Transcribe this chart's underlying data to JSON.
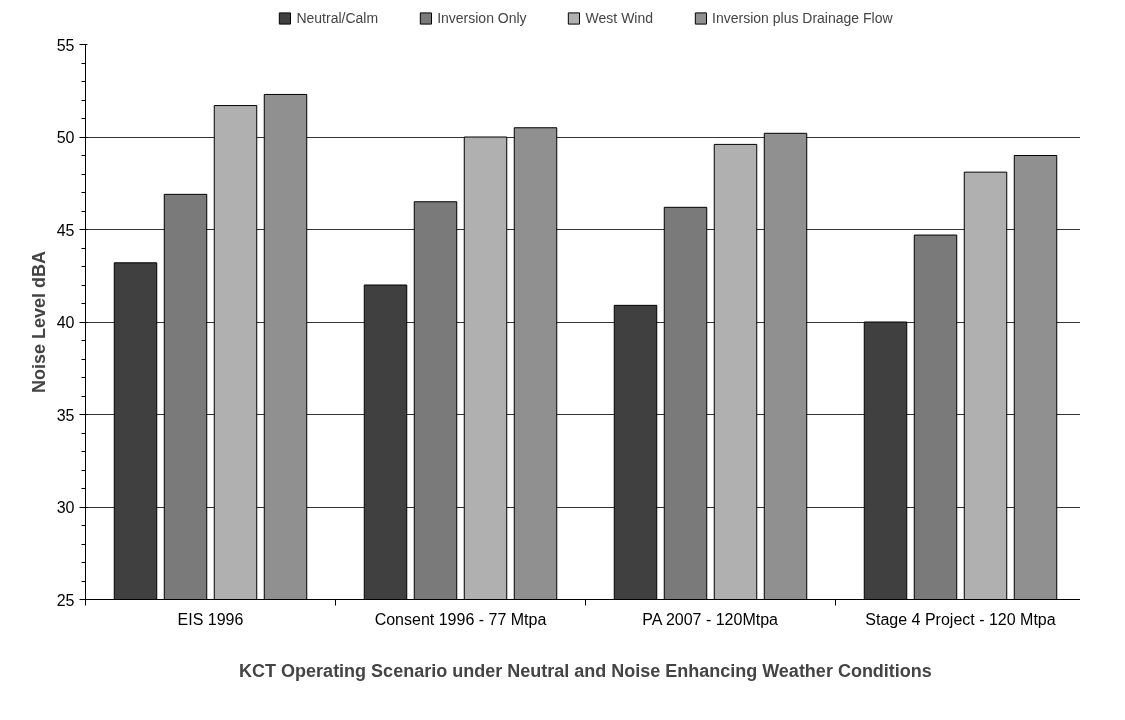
{
  "chart_data": {
    "type": "bar",
    "xlabel": "KCT Operating Scenario under Neutral and Noise Enhancing Weather Conditions",
    "ylabel": "Noise Level dBA",
    "categories": [
      "EIS 1996",
      "Consent 1996 - 77 Mtpa",
      "PA 2007 - 120Mtpa",
      "Stage 4 Project - 120 Mtpa"
    ],
    "series": [
      {
        "name": "Neutral/Calm",
        "color": "#404040",
        "values": [
          43.2,
          42.0,
          40.9,
          40.0
        ]
      },
      {
        "name": "Inversion Only",
        "color": "#7a7a7a",
        "values": [
          46.9,
          46.5,
          46.2,
          44.7
        ]
      },
      {
        "name": "West Wind",
        "color": "#b0b0b0",
        "values": [
          51.7,
          50.0,
          49.6,
          48.1
        ]
      },
      {
        "name": "Inversion plus Drainage Flow",
        "color": "#909090",
        "values": [
          52.3,
          50.5,
          50.2,
          49.0
        ]
      }
    ],
    "ylim": [
      25,
      55
    ],
    "yticks": [
      25,
      30,
      35,
      40,
      45,
      50,
      55
    ],
    "grid": "y",
    "legend": "top"
  }
}
